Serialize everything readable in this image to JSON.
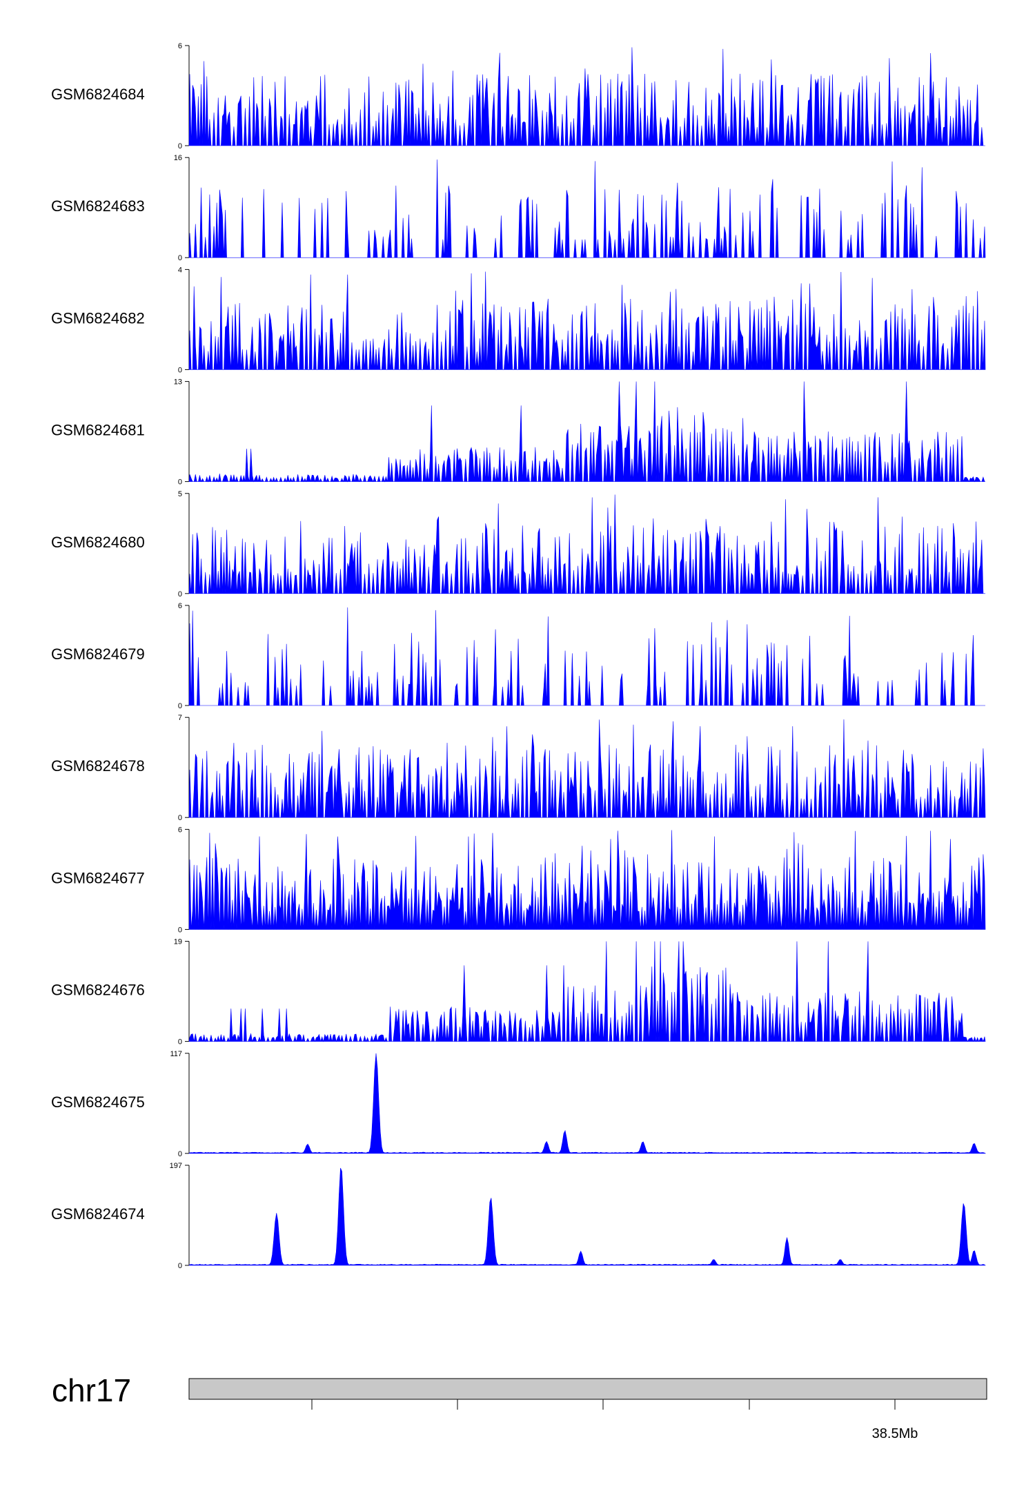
{
  "colors": {
    "signal": "#0000ff",
    "ideogram": "#c8c8c8",
    "axis": "#000000"
  },
  "chart_data": {
    "type": "area",
    "title": "",
    "chromosome": "chr17",
    "genome_axis_label": "38.5Mb",
    "tracks": [
      {
        "name": "GSM6824684",
        "ymax": 6,
        "ymin": 0,
        "ymax_label": "6",
        "ymin_label": "0",
        "profile": "sparse",
        "peaks": []
      },
      {
        "name": "GSM6824683",
        "ymax": 16,
        "ymin": 0,
        "ymax_label": "16",
        "ymin_label": "0",
        "profile": "very-sparse",
        "peaks": []
      },
      {
        "name": "GSM6824682",
        "ymax": 4,
        "ymin": 0,
        "ymax_label": "4",
        "ymin_label": "0",
        "profile": "sparse",
        "peaks": []
      },
      {
        "name": "GSM6824681",
        "ymax": 13,
        "ymin": 0,
        "ymax_label": "13",
        "ymin_label": "0",
        "profile": "broad",
        "peaks": []
      },
      {
        "name": "GSM6824680",
        "ymax": 5,
        "ymin": 0,
        "ymax_label": "5",
        "ymin_label": "0",
        "profile": "sparse",
        "peaks": []
      },
      {
        "name": "GSM6824679",
        "ymax": 6,
        "ymin": 0,
        "ymax_label": "6",
        "ymin_label": "0",
        "profile": "very-sparse",
        "peaks": []
      },
      {
        "name": "GSM6824678",
        "ymax": 7,
        "ymin": 0,
        "ymax_label": "7",
        "ymin_label": "0",
        "profile": "sparse",
        "peaks": []
      },
      {
        "name": "GSM6824677",
        "ymax": 6,
        "ymin": 0,
        "ymax_label": "6",
        "ymin_label": "0",
        "profile": "dense",
        "peaks": []
      },
      {
        "name": "GSM6824676",
        "ymax": 19,
        "ymin": 0,
        "ymax_label": "19",
        "ymin_label": "0",
        "profile": "broad",
        "peaks": []
      },
      {
        "name": "GSM6824675",
        "ymax": 117,
        "ymin": 0,
        "ymax_label": "117",
        "ymin_label": "0",
        "profile": "peaks",
        "peaks": [
          {
            "pos": 0.148,
            "height": 11
          },
          {
            "pos": 0.234,
            "height": 117
          },
          {
            "pos": 0.448,
            "height": 14
          },
          {
            "pos": 0.471,
            "height": 27
          },
          {
            "pos": 0.569,
            "height": 14
          },
          {
            "pos": 0.985,
            "height": 12
          }
        ]
      },
      {
        "name": "GSM6824674",
        "ymax": 197,
        "ymin": 0,
        "ymax_label": "197",
        "ymin_label": "0",
        "profile": "peaks",
        "peaks": [
          {
            "pos": 0.109,
            "height": 103
          },
          {
            "pos": 0.19,
            "height": 197
          },
          {
            "pos": 0.378,
            "height": 135
          },
          {
            "pos": 0.491,
            "height": 28
          },
          {
            "pos": 0.658,
            "height": 12
          },
          {
            "pos": 0.75,
            "height": 55
          },
          {
            "pos": 0.817,
            "height": 12
          },
          {
            "pos": 0.972,
            "height": 124
          },
          {
            "pos": 0.985,
            "height": 30
          }
        ]
      }
    ],
    "axis_ticks": [
      "",
      "",
      "",
      "",
      "38.5Mb"
    ]
  }
}
